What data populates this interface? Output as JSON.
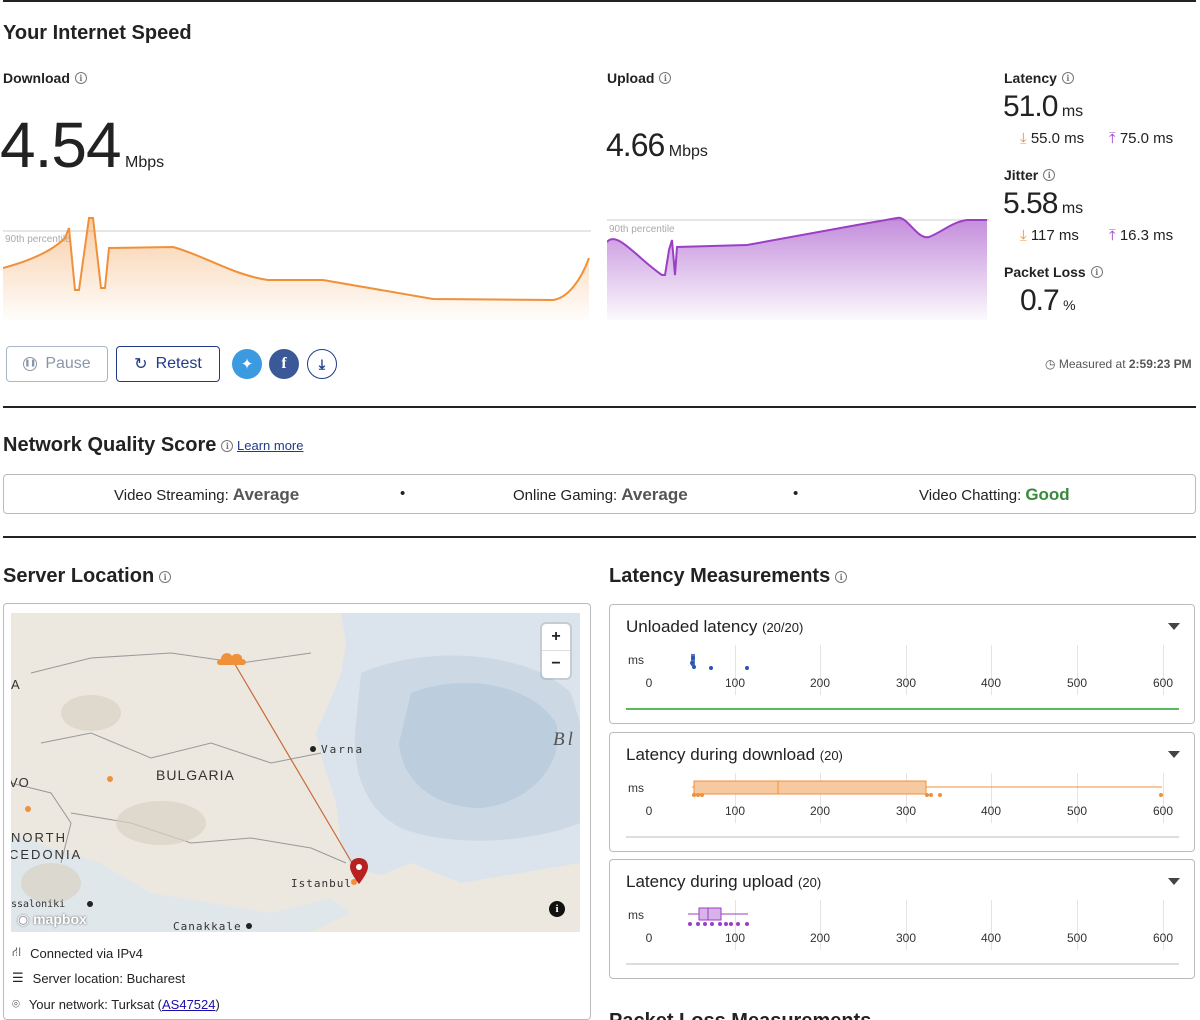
{
  "page_title": "Your Internet Speed",
  "download": {
    "label": "Download",
    "value": "4.54",
    "unit": "Mbps",
    "percentile_label": "90th percentile"
  },
  "upload": {
    "label": "Upload",
    "value": "4.66",
    "unit": "Mbps",
    "percentile_label": "90th percentile"
  },
  "latency": {
    "label": "Latency",
    "value": "51.0",
    "unit": "ms",
    "down": "55.0 ms",
    "up": "75.0 ms"
  },
  "jitter": {
    "label": "Jitter",
    "value": "5.58",
    "unit": "ms",
    "down": "117 ms",
    "up": "16.3 ms"
  },
  "packet_loss": {
    "label": "Packet Loss",
    "value": "0.7",
    "unit": "%"
  },
  "controls": {
    "pause_label": "Pause",
    "retest_label": "Retest"
  },
  "measured": {
    "prefix": "Measured at",
    "time": "2:59:23 PM"
  },
  "quality": {
    "title": "Network Quality Score",
    "learn_more": "Learn more",
    "items": [
      {
        "label": "Video Streaming:",
        "value": "Average"
      },
      {
        "label": "Online Gaming:",
        "value": "Average"
      },
      {
        "label": "Video Chatting:",
        "value": "Good"
      }
    ],
    "separator": "•"
  },
  "server": {
    "title": "Server Location",
    "map_labels": {
      "bulgaria": "BULGARIA",
      "varna": "Varna",
      "istanbul": "Istanbul",
      "canakkale": "Canakkale",
      "north": "NORTH",
      "macedonia": "CEDONIA",
      "vo": "VO",
      "a": "A",
      "sea": "Bl",
      "salonik": "ssaloniki",
      "mapbox": "mapbox"
    },
    "zoom_in": "+",
    "zoom_out": "−",
    "connected": "Connected via IPv4",
    "location": "Server location: Bucharest",
    "network_prefix": "Your network: Turksat (",
    "network_as": "AS47524",
    "network_suffix": ")"
  },
  "latency_measurements": {
    "title": "Latency Measurements",
    "axis_unit": "ms",
    "ticks": [
      "0",
      "100",
      "200",
      "300",
      "400",
      "500",
      "600"
    ],
    "panels": [
      {
        "title": "Unloaded latency",
        "count": "(20/20)"
      },
      {
        "title": "Latency during download",
        "count": "(20)"
      },
      {
        "title": "Latency during upload",
        "count": "(20)"
      }
    ],
    "next_title": "Packet Loss Measurements"
  },
  "colors": {
    "download": "#f0913a",
    "upload": "#9b3fc4",
    "unloaded": "#2a55b3",
    "good": "#3a8a3c",
    "retest": "#1f3b8a",
    "twitter": "#3b9ae0",
    "facebook": "#3b5998"
  }
}
